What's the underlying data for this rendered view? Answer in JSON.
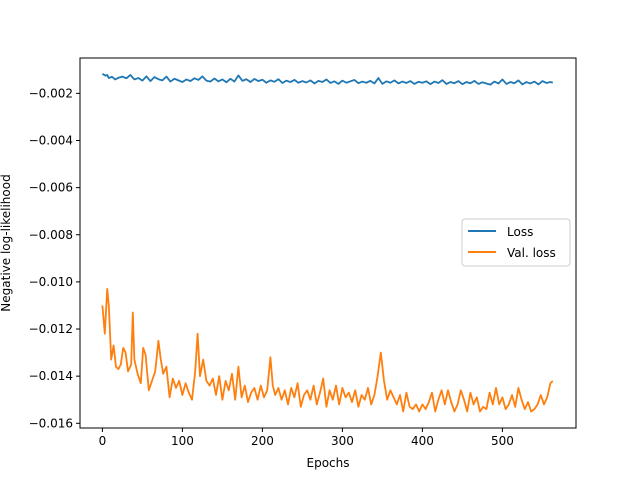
{
  "chart_data": {
    "type": "line",
    "title": "",
    "xlabel": "Epochs",
    "ylabel": "Negative log-likelihood",
    "xlim": [
      -28,
      592
    ],
    "ylim": [
      -0.0162,
      -0.0005
    ],
    "xticks": [
      0,
      100,
      200,
      300,
      400,
      500
    ],
    "xtick_labels": [
      "0",
      "100",
      "200",
      "300",
      "400",
      "500"
    ],
    "yticks": [
      -0.002,
      -0.004,
      -0.006,
      -0.008,
      -0.01,
      -0.012,
      -0.014,
      -0.016
    ],
    "ytick_labels": [
      "−0.002",
      "−0.004",
      "−0.006",
      "−0.008",
      "−0.010",
      "−0.012",
      "−0.014",
      "−0.016"
    ],
    "grid": false,
    "legend_position": "center-right",
    "series": [
      {
        "name": "Loss",
        "color": "#1f77b4",
        "points": [
          [
            0,
            -0.00117
          ],
          [
            4,
            -0.00125
          ],
          [
            6,
            -0.00122
          ],
          [
            8,
            -0.00135
          ],
          [
            12,
            -0.0013
          ],
          [
            16,
            -0.00141
          ],
          [
            20,
            -0.00134
          ],
          [
            25,
            -0.00129
          ],
          [
            30,
            -0.00136
          ],
          [
            35,
            -0.00122
          ],
          [
            40,
            -0.00141
          ],
          [
            45,
            -0.00135
          ],
          [
            50,
            -0.00146
          ],
          [
            55,
            -0.00128
          ],
          [
            60,
            -0.00148
          ],
          [
            65,
            -0.00131
          ],
          [
            70,
            -0.0014
          ],
          [
            75,
            -0.00145
          ],
          [
            80,
            -0.00129
          ],
          [
            85,
            -0.0015
          ],
          [
            90,
            -0.00138
          ],
          [
            95,
            -0.00145
          ],
          [
            100,
            -0.00152
          ],
          [
            105,
            -0.00141
          ],
          [
            110,
            -0.00148
          ],
          [
            115,
            -0.00136
          ],
          [
            120,
            -0.00143
          ],
          [
            125,
            -0.00128
          ],
          [
            130,
            -0.00146
          ],
          [
            135,
            -0.0015
          ],
          [
            140,
            -0.00137
          ],
          [
            145,
            -0.00149
          ],
          [
            150,
            -0.00141
          ],
          [
            155,
            -0.00153
          ],
          [
            160,
            -0.00138
          ],
          [
            165,
            -0.0015
          ],
          [
            170,
            -0.00124
          ],
          [
            175,
            -0.00147
          ],
          [
            180,
            -0.0014
          ],
          [
            185,
            -0.00152
          ],
          [
            190,
            -0.00139
          ],
          [
            195,
            -0.00148
          ],
          [
            200,
            -0.00142
          ],
          [
            205,
            -0.00155
          ],
          [
            210,
            -0.00145
          ],
          [
            215,
            -0.00151
          ],
          [
            220,
            -0.0014
          ],
          [
            225,
            -0.00156
          ],
          [
            230,
            -0.00146
          ],
          [
            235,
            -0.00152
          ],
          [
            240,
            -0.00143
          ],
          [
            245,
            -0.00155
          ],
          [
            250,
            -0.00148
          ],
          [
            255,
            -0.00154
          ],
          [
            260,
            -0.00145
          ],
          [
            265,
            -0.00158
          ],
          [
            270,
            -0.00147
          ],
          [
            275,
            -0.00152
          ],
          [
            280,
            -0.00141
          ],
          [
            285,
            -0.00156
          ],
          [
            290,
            -0.00149
          ],
          [
            295,
            -0.0016
          ],
          [
            300,
            -0.00146
          ],
          [
            305,
            -0.00155
          ],
          [
            310,
            -0.00149
          ],
          [
            315,
            -0.00143
          ],
          [
            320,
            -0.00157
          ],
          [
            325,
            -0.0015
          ],
          [
            330,
            -0.00155
          ],
          [
            335,
            -0.00147
          ],
          [
            340,
            -0.00158
          ],
          [
            345,
            -0.00135
          ],
          [
            350,
            -0.0016
          ],
          [
            355,
            -0.00149
          ],
          [
            360,
            -0.00155
          ],
          [
            365,
            -0.00145
          ],
          [
            370,
            -0.00158
          ],
          [
            375,
            -0.0015
          ],
          [
            380,
            -0.00156
          ],
          [
            385,
            -0.00148
          ],
          [
            390,
            -0.0016
          ],
          [
            395,
            -0.00151
          ],
          [
            400,
            -0.00155
          ],
          [
            405,
            -0.00149
          ],
          [
            410,
            -0.00161
          ],
          [
            415,
            -0.0015
          ],
          [
            420,
            -0.00156
          ],
          [
            425,
            -0.00144
          ],
          [
            430,
            -0.0016
          ],
          [
            435,
            -0.00152
          ],
          [
            440,
            -0.00157
          ],
          [
            445,
            -0.00148
          ],
          [
            450,
            -0.00161
          ],
          [
            455,
            -0.00152
          ],
          [
            460,
            -0.00157
          ],
          [
            465,
            -0.00147
          ],
          [
            470,
            -0.0016
          ],
          [
            475,
            -0.00153
          ],
          [
            480,
            -0.00158
          ],
          [
            485,
            -0.00163
          ],
          [
            490,
            -0.0015
          ],
          [
            495,
            -0.00158
          ],
          [
            500,
            -0.00141
          ],
          [
            505,
            -0.0016
          ],
          [
            510,
            -0.00152
          ],
          [
            515,
            -0.00157
          ],
          [
            520,
            -0.00145
          ],
          [
            525,
            -0.00162
          ],
          [
            530,
            -0.00152
          ],
          [
            535,
            -0.00158
          ],
          [
            540,
            -0.0015
          ],
          [
            545,
            -0.00162
          ],
          [
            550,
            -0.00148
          ],
          [
            555,
            -0.00156
          ],
          [
            560,
            -0.00152
          ],
          [
            563,
            -0.00155
          ]
        ]
      },
      {
        "name": "Val. loss",
        "color": "#ff7f0e",
        "points": [
          [
            0,
            -0.011
          ],
          [
            3,
            -0.0122
          ],
          [
            6,
            -0.0103
          ],
          [
            8,
            -0.011
          ],
          [
            11,
            -0.0133
          ],
          [
            14,
            -0.0127
          ],
          [
            17,
            -0.0136
          ],
          [
            20,
            -0.0137
          ],
          [
            23,
            -0.0135
          ],
          [
            26,
            -0.0128
          ],
          [
            29,
            -0.013
          ],
          [
            32,
            -0.0138
          ],
          [
            36,
            -0.0135
          ],
          [
            38,
            -0.0113
          ],
          [
            40,
            -0.0133
          ],
          [
            44,
            -0.0139
          ],
          [
            48,
            -0.0143
          ],
          [
            51,
            -0.0128
          ],
          [
            54,
            -0.0131
          ],
          [
            58,
            -0.0146
          ],
          [
            62,
            -0.0142
          ],
          [
            66,
            -0.0138
          ],
          [
            70,
            -0.0125
          ],
          [
            73,
            -0.0133
          ],
          [
            76,
            -0.0139
          ],
          [
            80,
            -0.0136
          ],
          [
            84,
            -0.0149
          ],
          [
            88,
            -0.0141
          ],
          [
            92,
            -0.0145
          ],
          [
            96,
            -0.0142
          ],
          [
            100,
            -0.0148
          ],
          [
            104,
            -0.0143
          ],
          [
            108,
            -0.0147
          ],
          [
            112,
            -0.015
          ],
          [
            116,
            -0.0138
          ],
          [
            119,
            -0.0122
          ],
          [
            122,
            -0.014
          ],
          [
            126,
            -0.0133
          ],
          [
            130,
            -0.0142
          ],
          [
            134,
            -0.0144
          ],
          [
            138,
            -0.0141
          ],
          [
            142,
            -0.0148
          ],
          [
            146,
            -0.014
          ],
          [
            150,
            -0.015
          ],
          [
            154,
            -0.0142
          ],
          [
            158,
            -0.0146
          ],
          [
            162,
            -0.0139
          ],
          [
            166,
            -0.015
          ],
          [
            170,
            -0.0136
          ],
          [
            174,
            -0.0149
          ],
          [
            178,
            -0.0144
          ],
          [
            182,
            -0.0151
          ],
          [
            186,
            -0.0147
          ],
          [
            190,
            -0.0145
          ],
          [
            194,
            -0.015
          ],
          [
            198,
            -0.0144
          ],
          [
            202,
            -0.0149
          ],
          [
            206,
            -0.0146
          ],
          [
            210,
            -0.0132
          ],
          [
            213,
            -0.0144
          ],
          [
            216,
            -0.0148
          ],
          [
            220,
            -0.0145
          ],
          [
            224,
            -0.015
          ],
          [
            228,
            -0.0146
          ],
          [
            232,
            -0.0152
          ],
          [
            236,
            -0.0145
          ],
          [
            240,
            -0.0149
          ],
          [
            244,
            -0.0143
          ],
          [
            248,
            -0.0153
          ],
          [
            252,
            -0.0148
          ],
          [
            256,
            -0.0146
          ],
          [
            260,
            -0.015
          ],
          [
            264,
            -0.0144
          ],
          [
            268,
            -0.0152
          ],
          [
            272,
            -0.0147
          ],
          [
            276,
            -0.0141
          ],
          [
            280,
            -0.0153
          ],
          [
            284,
            -0.0146
          ],
          [
            288,
            -0.015
          ],
          [
            292,
            -0.0144
          ],
          [
            296,
            -0.0152
          ],
          [
            300,
            -0.0145
          ],
          [
            304,
            -0.0149
          ],
          [
            308,
            -0.0147
          ],
          [
            312,
            -0.0151
          ],
          [
            316,
            -0.0146
          ],
          [
            320,
            -0.0153
          ],
          [
            324,
            -0.0148
          ],
          [
            328,
            -0.015
          ],
          [
            332,
            -0.0145
          ],
          [
            336,
            -0.0152
          ],
          [
            340,
            -0.0148
          ],
          [
            344,
            -0.014
          ],
          [
            348,
            -0.013
          ],
          [
            352,
            -0.0142
          ],
          [
            356,
            -0.015
          ],
          [
            360,
            -0.0146
          ],
          [
            364,
            -0.0149
          ],
          [
            368,
            -0.0152
          ],
          [
            372,
            -0.0148
          ],
          [
            376,
            -0.0155
          ],
          [
            380,
            -0.0147
          ],
          [
            384,
            -0.0153
          ],
          [
            388,
            -0.0154
          ],
          [
            392,
            -0.0152
          ],
          [
            396,
            -0.0155
          ],
          [
            400,
            -0.0152
          ],
          [
            404,
            -0.0154
          ],
          [
            408,
            -0.0151
          ],
          [
            412,
            -0.0147
          ],
          [
            416,
            -0.0155
          ],
          [
            420,
            -0.015
          ],
          [
            424,
            -0.0146
          ],
          [
            428,
            -0.0152
          ],
          [
            432,
            -0.0146
          ],
          [
            436,
            -0.0151
          ],
          [
            440,
            -0.0155
          ],
          [
            444,
            -0.0152
          ],
          [
            448,
            -0.0146
          ],
          [
            452,
            -0.015
          ],
          [
            456,
            -0.0155
          ],
          [
            460,
            -0.0147
          ],
          [
            464,
            -0.0152
          ],
          [
            468,
            -0.0149
          ],
          [
            472,
            -0.0155
          ],
          [
            476,
            -0.0153
          ],
          [
            480,
            -0.0154
          ],
          [
            484,
            -0.0147
          ],
          [
            488,
            -0.0152
          ],
          [
            492,
            -0.0145
          ],
          [
            496,
            -0.0152
          ],
          [
            500,
            -0.0149
          ],
          [
            504,
            -0.0154
          ],
          [
            508,
            -0.0152
          ],
          [
            512,
            -0.0148
          ],
          [
            516,
            -0.0153
          ],
          [
            520,
            -0.0145
          ],
          [
            524,
            -0.015
          ],
          [
            528,
            -0.0154
          ],
          [
            532,
            -0.0151
          ],
          [
            536,
            -0.0155
          ],
          [
            540,
            -0.0154
          ],
          [
            544,
            -0.0152
          ],
          [
            548,
            -0.0148
          ],
          [
            552,
            -0.0152
          ],
          [
            556,
            -0.0149
          ],
          [
            560,
            -0.0143
          ],
          [
            563,
            -0.0142
          ]
        ]
      }
    ]
  }
}
